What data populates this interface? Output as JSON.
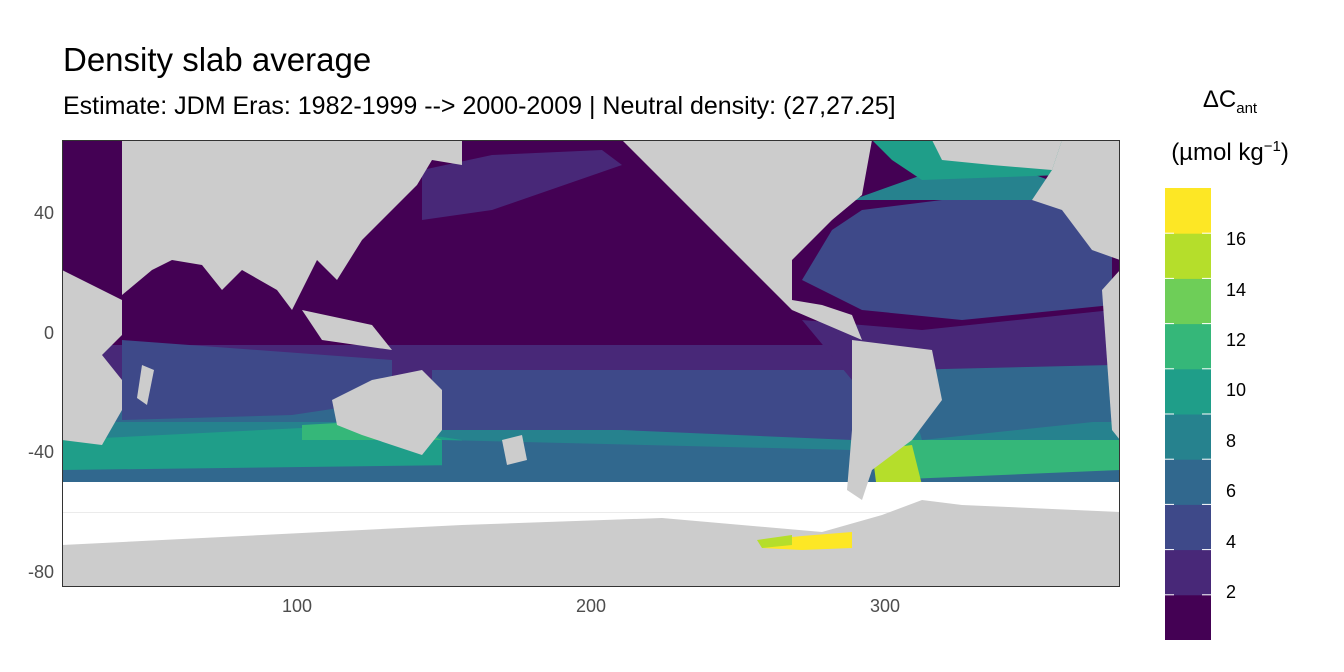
{
  "chart_data": {
    "type": "heatmap",
    "title": "Density slab average",
    "subtitle": "Estimate: JDM Eras: 1982-1999 --> 2000-2009 | Neutral density: (27,27.25]",
    "x_ticks": [
      "100",
      "200",
      "300"
    ],
    "x_tick_values": [
      100,
      200,
      300
    ],
    "y_ticks": [
      "40",
      "0",
      "-40",
      "-80"
    ],
    "y_tick_values": [
      40,
      0,
      -40,
      -80
    ],
    "xlim": [
      20,
      380
    ],
    "ylim": [
      -85,
      65
    ],
    "legend": {
      "title_main": "ΔC",
      "title_sub": "ant",
      "unit_main": "(µmol kg",
      "unit_sup": "−1",
      "unit_close": ")",
      "labels": [
        "16",
        "14",
        "12",
        "10",
        "8",
        "6",
        "4",
        "2"
      ],
      "label_values": [
        16,
        14,
        12,
        10,
        8,
        6,
        4,
        2
      ],
      "bins": [
        0,
        2,
        4,
        6,
        8,
        10,
        12,
        14,
        16,
        18
      ],
      "colors": [
        "#440154",
        "#482878",
        "#3e4989",
        "#31688e",
        "#26828e",
        "#1f9e89",
        "#35b779",
        "#6ece58",
        "#b5de2b",
        "#fde725"
      ]
    },
    "land_color": "#cccccc",
    "grid": true
  }
}
